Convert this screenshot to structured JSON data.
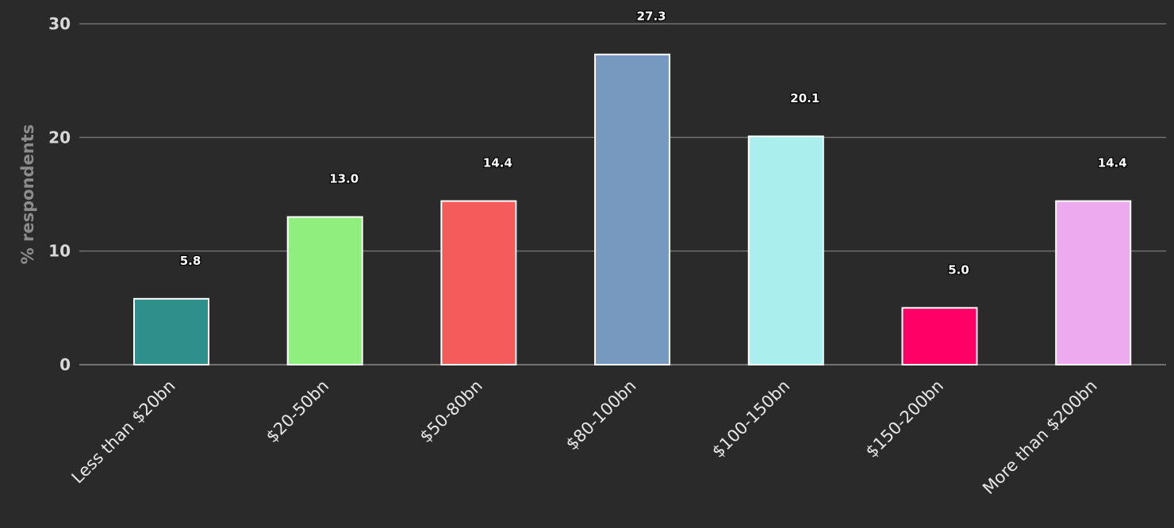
{
  "chart_data": {
    "type": "bar",
    "title": "",
    "xlabel": "",
    "ylabel": "% respondents",
    "categories": [
      "Less than $20bn",
      "$20-50bn",
      "$50-80bn",
      "$80-100bn",
      "$100-150bn",
      "$150-200bn",
      "More than $200bn"
    ],
    "values": [
      5.8,
      13.0,
      14.4,
      27.3,
      20.1,
      5.0,
      14.4
    ],
    "value_labels": [
      "5.8",
      "13.0",
      "14.4",
      "27.3",
      "20.1",
      "5.0",
      "14.4"
    ],
    "colors": [
      "#2e8f8b",
      "#90ee7e",
      "#f45b5b",
      "#7798bf",
      "#aaeeee",
      "#ff0066",
      "#eeaaee"
    ],
    "ylim": [
      0,
      30
    ],
    "yticks": [
      0,
      10,
      20,
      30
    ],
    "grid": true,
    "legend": "none",
    "bar_border_color": "#ffffff",
    "gridline_color": "#707070",
    "background_color": "#2a2a2a"
  }
}
